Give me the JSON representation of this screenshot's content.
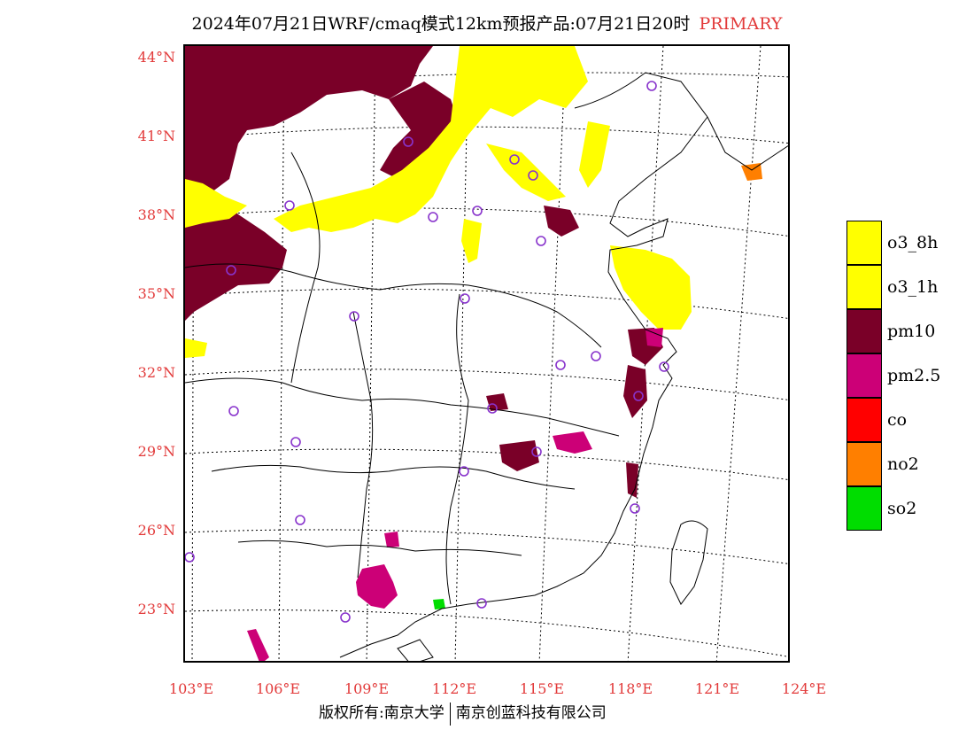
{
  "title": {
    "main": "2024年07月21日WRF/cmaq模式12km预报产品:07月21日20时",
    "tag": "PRIMARY"
  },
  "axes": {
    "lat_labels": [
      "44°N",
      "41°N",
      "38°N",
      "35°N",
      "32°N",
      "29°N",
      "26°N",
      "23°N"
    ],
    "lon_labels": [
      "103°E",
      "106°E",
      "109°E",
      "112°E",
      "115°E",
      "118°E",
      "121°E",
      "124°E"
    ]
  },
  "legend": [
    {
      "label": "o3_8h",
      "color": "#ffff00"
    },
    {
      "label": "o3_1h",
      "color": "#ffff00"
    },
    {
      "label": "pm10",
      "color": "#7a0028"
    },
    {
      "label": "pm2.5",
      "color": "#cc0077"
    },
    {
      "label": "co",
      "color": "#ff0000"
    },
    {
      "label": "no2",
      "color": "#ff7f00"
    },
    {
      "label": "so2",
      "color": "#00dd00"
    }
  ],
  "footer": {
    "left": "版权所有:南京大学",
    "right": "南京创蓝科技有限公司"
  },
  "colors": {
    "o3": "#ffff00",
    "pm10": "#7a0028",
    "pm25": "#cc0077",
    "no2": "#ff7f00",
    "so2": "#00dd00",
    "station": "#8833cc",
    "axis_label": "#e23a3a"
  }
}
